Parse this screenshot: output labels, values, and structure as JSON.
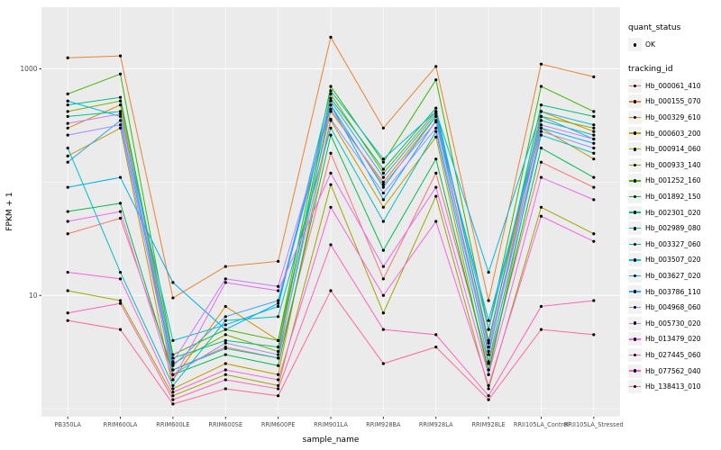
{
  "panel": {
    "background": "#EBEBEB",
    "grid_color": "#FFFFFF",
    "point_color": "#000000",
    "tick_color": "#333333",
    "tick_label_color": "#4D4D4D"
  },
  "legend": {
    "quant_status": {
      "title": "quant_status",
      "items": [
        {
          "label": "OK"
        }
      ]
    },
    "tracking_id": {
      "title": "tracking_id"
    }
  },
  "chart_data": {
    "type": "line",
    "title": "",
    "xlabel": "sample_name",
    "ylabel": "FPKM + 1",
    "y_scale": "log10",
    "ylim": [
      0.85,
      3500
    ],
    "y_ticks": [
      {
        "value": 1000,
        "label": "1000"
      },
      {
        "value": 10,
        "label": "10"
      }
    ],
    "y_minor": [
      1,
      100
    ],
    "grid": true,
    "legend_position": "right",
    "categories": [
      "PB350LA",
      "RRIM600LA",
      "RRIM600LE",
      "RRIM600SE",
      "RRIM600PE",
      "RRIM901LA",
      "RRIM928BA",
      "RRIM928LA",
      "RRIM928LE",
      "RRII105LA_Control",
      "RRII105LA_Stressed"
    ],
    "series": [
      {
        "name": "Hb_000061_410",
        "color": "#F8766D",
        "values": [
          35,
          48,
          2.2,
          3.5,
          2.8,
          180,
          14,
          120,
          2.5,
          150,
          90
        ]
      },
      {
        "name": "Hb_000155_070",
        "color": "#EA8331",
        "values": [
          1250,
          1300,
          9.5,
          18,
          20,
          1900,
          300,
          1050,
          9,
          1100,
          850
        ]
      },
      {
        "name": "Hb_000329_610",
        "color": "#D89000",
        "values": [
          300,
          480,
          1.8,
          8,
          4,
          420,
          100,
          380,
          3,
          420,
          280
        ]
      },
      {
        "name": "Hb_000603_200",
        "color": "#C09B00",
        "values": [
          170,
          300,
          1.5,
          2.5,
          2,
          350,
          60,
          250,
          2,
          300,
          160
        ]
      },
      {
        "name": "Hb_000914_060",
        "color": "#A3A500",
        "values": [
          11,
          9,
          1.3,
          2,
          1.6,
          95,
          7,
          75,
          1.5,
          60,
          35
        ]
      },
      {
        "name": "Hb_000933_140",
        "color": "#7CAE00",
        "values": [
          420,
          520,
          2.5,
          4.5,
          3.2,
          600,
          120,
          420,
          4,
          380,
          300
        ]
      },
      {
        "name": "Hb_001252_160",
        "color": "#39B600",
        "values": [
          600,
          900,
          3,
          5,
          4,
          700,
          150,
          800,
          5,
          700,
          420
        ]
      },
      {
        "name": "Hb_001892_150",
        "color": "#00BB4E",
        "values": [
          55,
          65,
          2,
          3,
          2.4,
          260,
          25,
          160,
          2.2,
          200,
          110
        ]
      },
      {
        "name": "Hb_002301_020",
        "color": "#00BF7D",
        "values": [
          480,
          560,
          2.8,
          4,
          3.5,
          550,
          130,
          450,
          3.8,
          480,
          380
        ]
      },
      {
        "name": "Hb_002989_080",
        "color": "#00C1A3",
        "values": [
          380,
          420,
          2.2,
          3.4,
          2.8,
          480,
          90,
          380,
          3,
          350,
          260
        ]
      },
      {
        "name": "Hb_003327_060",
        "color": "#00BFC4",
        "values": [
          200,
          16,
          1.6,
          6,
          6.5,
          300,
          45,
          280,
          2.6,
          260,
          180
        ]
      },
      {
        "name": "Hb_003507_020",
        "color": "#00BAE0",
        "values": [
          520,
          380,
          4,
          5.5,
          8,
          640,
          160,
          420,
          16,
          420,
          320
        ]
      },
      {
        "name": "Hb_003627_020",
        "color": "#00B0F6",
        "values": [
          90,
          110,
          13,
          5,
          8.5,
          480,
          70,
          350,
          6,
          300,
          220
        ]
      },
      {
        "name": "Hb_003786_110",
        "color": "#35A2FF",
        "values": [
          150,
          350,
          2.4,
          6.5,
          9,
          520,
          110,
          400,
          5,
          380,
          240
        ]
      },
      {
        "name": "Hb_004968_060",
        "color": "#9590FF",
        "values": [
          260,
          320,
          2,
          3.8,
          3,
          360,
          80,
          300,
          3.2,
          280,
          200
        ]
      },
      {
        "name": "Hb_005730_020",
        "color": "#C77CFF",
        "values": [
          330,
          400,
          2.6,
          14,
          12,
          440,
          95,
          340,
          3.5,
          320,
          240
        ]
      },
      {
        "name": "Hb_013479_020",
        "color": "#E76BF3",
        "values": [
          45,
          55,
          1.8,
          13,
          11,
          120,
          18,
          90,
          2,
          110,
          70
        ]
      },
      {
        "name": "Hb_027445_060",
        "color": "#FA62DB",
        "values": [
          16,
          14,
          1.4,
          2.2,
          1.8,
          60,
          10,
          45,
          1.6,
          50,
          30
        ]
      },
      {
        "name": "Hb_077562_040",
        "color": "#FF62BC",
        "values": [
          7,
          8.5,
          1.2,
          1.8,
          1.5,
          28,
          5,
          4.5,
          1.3,
          8,
          9
        ]
      },
      {
        "name": "Hb_138413_010",
        "color": "#FF6A98",
        "values": [
          6,
          5,
          1.1,
          1.5,
          1.3,
          11,
          2.5,
          3.5,
          1.2,
          5,
          4.5
        ]
      }
    ]
  }
}
